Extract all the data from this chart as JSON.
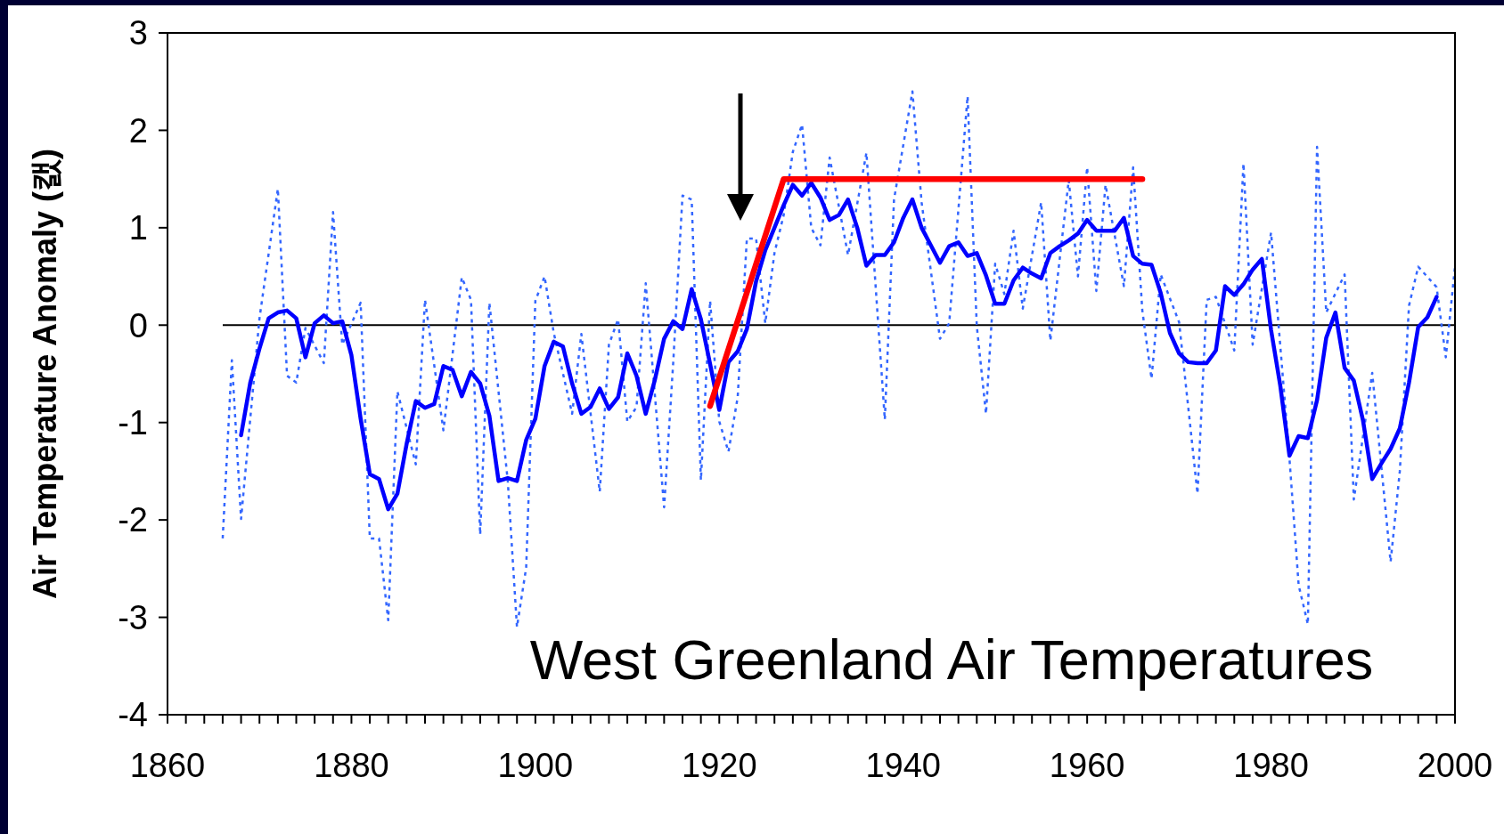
{
  "chart_data": {
    "type": "line",
    "title": "West Greenland Air Temperatures",
    "ylabel": "Air Temperature Anomaly (캜)",
    "xlim": [
      1860,
      2000
    ],
    "ylim": [
      -4,
      3
    ],
    "xticks": [
      1860,
      {
        "value": 1862,
        "label": null
      },
      {
        "value": 1864,
        "label": null
      },
      {
        "value": 1866,
        "label": null
      },
      {
        "value": 1868,
        "label": null
      },
      {
        "value": 1870,
        "label": null
      },
      {
        "value": 1872,
        "label": null
      },
      {
        "value": 1874,
        "label": null
      },
      {
        "value": 1876,
        "label": null
      },
      {
        "value": 1878,
        "label": null
      },
      1880,
      {
        "value": 1882,
        "label": null
      },
      {
        "value": 1884,
        "label": null
      },
      {
        "value": 1886,
        "label": null
      },
      {
        "value": 1888,
        "label": null
      },
      {
        "value": 1890,
        "label": null
      },
      {
        "value": 1892,
        "label": null
      },
      {
        "value": 1894,
        "label": null
      },
      {
        "value": 1896,
        "label": null
      },
      {
        "value": 1898,
        "label": null
      },
      1900,
      {
        "value": 1902,
        "label": null
      },
      {
        "value": 1904,
        "label": null
      },
      {
        "value": 1906,
        "label": null
      },
      {
        "value": 1908,
        "label": null
      },
      {
        "value": 1910,
        "label": null
      },
      {
        "value": 1912,
        "label": null
      },
      {
        "value": 1914,
        "label": null
      },
      {
        "value": 1916,
        "label": null
      },
      {
        "value": 1918,
        "label": null
      },
      1920,
      {
        "value": 1922,
        "label": null
      },
      {
        "value": 1924,
        "label": null
      },
      {
        "value": 1926,
        "label": null
      },
      {
        "value": 1928,
        "label": null
      },
      {
        "value": 1930,
        "label": null
      },
      {
        "value": 1932,
        "label": null
      },
      {
        "value": 1934,
        "label": null
      },
      {
        "value": 1936,
        "label": null
      },
      {
        "value": 1938,
        "label": null
      },
      1940,
      {
        "value": 1942,
        "label": null
      },
      {
        "value": 1944,
        "label": null
      },
      {
        "value": 1946,
        "label": null
      },
      {
        "value": 1948,
        "label": null
      },
      {
        "value": 1950,
        "label": null
      },
      {
        "value": 1952,
        "label": null
      },
      {
        "value": 1954,
        "label": null
      },
      {
        "value": 1956,
        "label": null
      },
      {
        "value": 1958,
        "label": null
      },
      1960,
      {
        "value": 1962,
        "label": null
      },
      {
        "value": 1964,
        "label": null
      },
      {
        "value": 1966,
        "label": null
      },
      {
        "value": 1968,
        "label": null
      },
      {
        "value": 1970,
        "label": null
      },
      {
        "value": 1972,
        "label": null
      },
      {
        "value": 1974,
        "label": null
      },
      {
        "value": 1976,
        "label": null
      },
      {
        "value": 1978,
        "label": null
      },
      1980,
      {
        "value": 1982,
        "label": null
      },
      {
        "value": 1984,
        "label": null
      },
      {
        "value": 1986,
        "label": null
      },
      {
        "value": 1988,
        "label": null
      },
      {
        "value": 1990,
        "label": null
      },
      {
        "value": 1992,
        "label": null
      },
      {
        "value": 1994,
        "label": null
      },
      {
        "value": 1996,
        "label": null
      },
      {
        "value": 1998,
        "label": null
      },
      2000
    ],
    "yticks": [
      -4,
      -3,
      -2,
      -1,
      0,
      1,
      2,
      3
    ],
    "grid": false,
    "ref_lines": [
      {
        "axis": "y",
        "value": 0,
        "color": "#000000"
      }
    ],
    "series": [
      {
        "color": "#3366ff",
        "line_style": "dotted",
        "x": [
          1866,
          1867,
          1868,
          1870,
          1872,
          1873,
          1874,
          1875,
          1877,
          1878,
          1879,
          1881,
          1882,
          1883,
          1884,
          1885,
          1887,
          1888,
          1890,
          1892,
          1893,
          1894,
          1895,
          1897,
          1898,
          1899,
          1900,
          1901,
          1902,
          1904,
          1905,
          1907,
          1908,
          1909,
          1910,
          1911,
          1912,
          1914,
          1915,
          1916,
          1917,
          1918,
          1919,
          1920,
          1921,
          1922,
          1923,
          1924,
          1925,
          1926,
          1927,
          1928,
          1929,
          1930,
          1931,
          1932,
          1934,
          1936,
          1938,
          1939,
          1941,
          1942,
          1944,
          1945,
          1947,
          1948,
          1949,
          1950,
          1951,
          1952,
          1953,
          1955,
          1956,
          1958,
          1959,
          1960,
          1961,
          1962,
          1964,
          1965,
          1966,
          1967,
          1968,
          1970,
          1972,
          1973,
          1974,
          1976,
          1977,
          1978,
          1980,
          1982,
          1983,
          1984,
          1985,
          1986,
          1988,
          1989,
          1991,
          1993,
          1994,
          1995,
          1996,
          1998,
          1999,
          2000
        ],
        "values": [
          -2.19,
          -0.36,
          -1.99,
          0.07,
          1.4,
          -0.52,
          -0.59,
          -0.03,
          -0.39,
          1.16,
          -0.2,
          0.23,
          -2.19,
          -2.19,
          -3.03,
          -0.68,
          -1.43,
          0.26,
          -1.08,
          0.49,
          0.26,
          -2.15,
          0.23,
          -1.6,
          -3.1,
          -2.49,
          0.25,
          0.5,
          -0.08,
          -0.91,
          -0.09,
          -1.71,
          -0.2,
          0.06,
          -0.99,
          -0.84,
          0.43,
          -1.87,
          -0.37,
          1.33,
          1.29,
          -1.59,
          0.25,
          -0.99,
          -1.3,
          -0.74,
          0.89,
          0.89,
          0.02,
          0.74,
          1.13,
          1.78,
          2.06,
          1.0,
          0.82,
          1.72,
          0.72,
          1.77,
          -0.97,
          1.29,
          2.4,
          1.26,
          -0.14,
          0.02,
          2.35,
          -0.01,
          -0.91,
          0.63,
          0.32,
          0.97,
          0.17,
          1.26,
          -0.16,
          1.49,
          0.5,
          1.62,
          0.35,
          1.44,
          0.4,
          1.62,
          0.15,
          -0.55,
          0.52,
          0.03,
          -1.73,
          0.26,
          0.29,
          -0.26,
          1.66,
          -0.2,
          0.95,
          -1.37,
          -2.67,
          -3.07,
          1.83,
          0.13,
          0.52,
          -1.79,
          -0.49,
          -2.43,
          -1.5,
          0.2,
          0.6,
          0.39,
          -0.33,
          0.6
        ]
      },
      {
        "color": "#0000ff",
        "line_style": "solid",
        "x": [
          1868,
          1869,
          1870,
          1871,
          1872,
          1873,
          1874,
          1875,
          1876,
          1877,
          1878,
          1879,
          1880,
          1881,
          1882,
          1883,
          1884,
          1885,
          1886,
          1887,
          1888,
          1889,
          1890,
          1891,
          1892,
          1893,
          1894,
          1895,
          1896,
          1897,
          1898,
          1899,
          1900,
          1901,
          1902,
          1903,
          1904,
          1905,
          1906,
          1907,
          1908,
          1909,
          1910,
          1911,
          1912,
          1913,
          1914,
          1915,
          1916,
          1917,
          1918,
          1919,
          1920,
          1921,
          1922,
          1923,
          1924,
          1925,
          1926,
          1927,
          1928,
          1929,
          1930,
          1931,
          1932,
          1933,
          1934,
          1935,
          1936,
          1937,
          1938,
          1939,
          1940,
          1941,
          1942,
          1943,
          1944,
          1945,
          1946,
          1947,
          1948,
          1949,
          1950,
          1951,
          1952,
          1953,
          1954,
          1955,
          1956,
          1957,
          1958,
          1959,
          1960,
          1961,
          1962,
          1963,
          1964,
          1965,
          1966,
          1967,
          1968,
          1969,
          1970,
          1971,
          1972,
          1973,
          1974,
          1975,
          1976,
          1977,
          1978,
          1979,
          1980,
          1981,
          1982,
          1983,
          1984,
          1985,
          1986,
          1987,
          1988,
          1989,
          1990,
          1991,
          1992,
          1993,
          1994,
          1995,
          1996,
          1997,
          1998
        ],
        "values": [
          -1.13,
          -0.59,
          -0.24,
          0.07,
          0.13,
          0.15,
          0.07,
          -0.33,
          0.02,
          0.1,
          0.02,
          0.04,
          -0.31,
          -0.96,
          -1.53,
          -1.58,
          -1.89,
          -1.73,
          -1.22,
          -0.78,
          -0.85,
          -0.81,
          -0.42,
          -0.46,
          -0.73,
          -0.48,
          -0.6,
          -0.93,
          -1.6,
          -1.57,
          -1.6,
          -1.18,
          -0.96,
          -0.42,
          -0.17,
          -0.22,
          -0.6,
          -0.91,
          -0.84,
          -0.65,
          -0.86,
          -0.74,
          -0.29,
          -0.52,
          -0.91,
          -0.56,
          -0.14,
          0.04,
          -0.04,
          0.37,
          0.06,
          -0.4,
          -0.87,
          -0.38,
          -0.27,
          -0.04,
          0.45,
          0.77,
          1.0,
          1.23,
          1.44,
          1.33,
          1.46,
          1.31,
          1.08,
          1.13,
          1.29,
          1.0,
          0.61,
          0.72,
          0.72,
          0.85,
          1.1,
          1.29,
          1.0,
          0.82,
          0.64,
          0.81,
          0.85,
          0.71,
          0.74,
          0.51,
          0.22,
          0.22,
          0.46,
          0.59,
          0.53,
          0.48,
          0.74,
          0.81,
          0.87,
          0.94,
          1.08,
          0.97,
          0.97,
          0.97,
          1.1,
          0.71,
          0.63,
          0.62,
          0.33,
          -0.08,
          -0.29,
          -0.38,
          -0.39,
          -0.39,
          -0.26,
          0.4,
          0.31,
          0.42,
          0.57,
          0.68,
          -0.05,
          -0.62,
          -1.34,
          -1.14,
          -1.16,
          -0.77,
          -0.13,
          0.13,
          -0.44,
          -0.57,
          -0.98,
          -1.58,
          -1.42,
          -1.27,
          -1.06,
          -0.59,
          -0.02,
          0.08,
          0.29
        ]
      },
      {
        "color": "#ff0000",
        "line_style": "solid",
        "x": [
          1919,
          1927,
          1966
        ],
        "values": [
          -0.83,
          1.5,
          1.5
        ]
      }
    ]
  }
}
